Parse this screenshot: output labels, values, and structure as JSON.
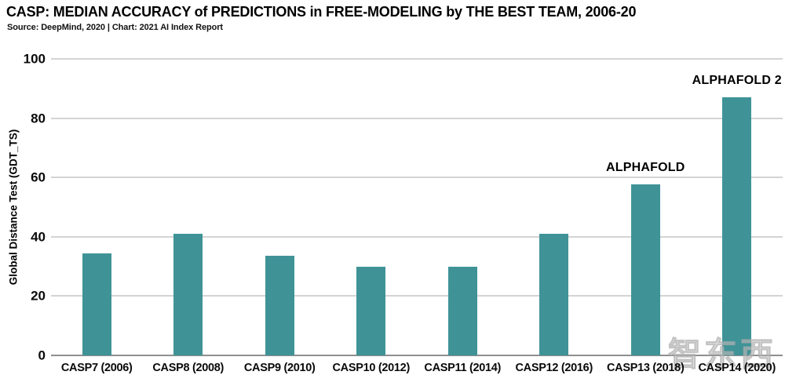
{
  "title": "CASP: MEDIAN ACCURACY of PREDICTIONS in FREE-MODELING by THE BEST TEAM, 2006-20",
  "subtitle": "Source: DeepMind, 2020 | Chart: 2021 AI Index Report",
  "watermark": {
    "text": "智东西"
  },
  "colors": {
    "bar": "#3F9397",
    "gridline": "#D4D4D4",
    "axis_line": "#8F8F8F",
    "text": "#000000",
    "watermark": "#BFBFBF"
  },
  "chart_data": {
    "type": "bar",
    "title": "CASP: MEDIAN ACCURACY of PREDICTIONS in FREE-MODELING by THE BEST TEAM, 2006-20",
    "subtitle": "Source: DeepMind, 2020 | Chart: 2021 AI Index Report",
    "categories": [
      "CASP7 (2006)",
      "CASP8 (2008)",
      "CASP9 (2010)",
      "CASP10 (2012)",
      "CASP11 (2014)",
      "CASP12 (2016)",
      "CASP13 (2018)",
      "CASP14 (2020)"
    ],
    "values": [
      34.3,
      41,
      33.7,
      30,
      30,
      41,
      57.8,
      87
    ],
    "xlabel": "",
    "ylabel": "Global Distance Test (GDT_TS)",
    "ylim": [
      0,
      100
    ],
    "yticks": [
      0,
      20,
      40,
      60,
      80,
      100
    ],
    "grid": true,
    "legend": false,
    "annotations": [
      {
        "text": "ALPHAFOLD",
        "category_index": 6
      },
      {
        "text": "ALPHAFOLD 2",
        "category_index": 7
      }
    ]
  }
}
